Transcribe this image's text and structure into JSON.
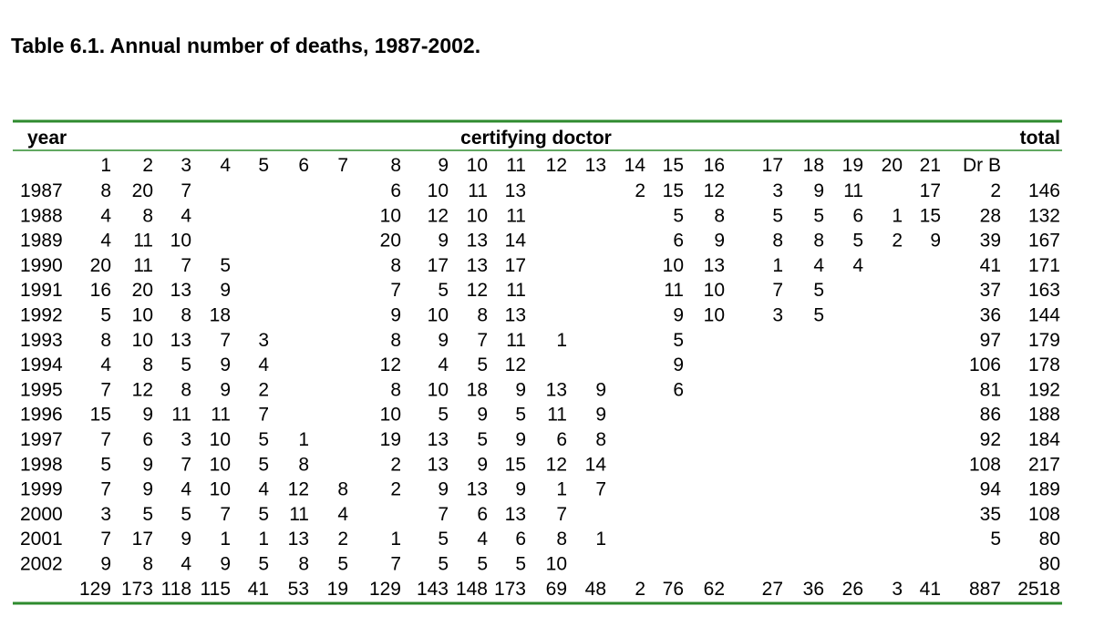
{
  "title": "Table 6.1. Annual number of deaths, 1987-2002.",
  "header": {
    "year": "year",
    "group": "certifying doctor",
    "total": "total"
  },
  "columns": [
    1,
    2,
    3,
    4,
    5,
    6,
    7,
    8,
    9,
    10,
    11,
    12,
    13,
    14,
    15,
    16,
    17,
    18,
    19,
    20,
    21,
    "Dr B"
  ],
  "rows": [
    {
      "year": 1987,
      "cells": [
        8,
        20,
        7,
        null,
        null,
        null,
        null,
        6,
        10,
        11,
        13,
        null,
        null,
        2,
        15,
        12,
        3,
        9,
        11,
        null,
        17,
        2
      ],
      "total": 146
    },
    {
      "year": 1988,
      "cells": [
        4,
        8,
        4,
        null,
        null,
        null,
        null,
        10,
        12,
        10,
        11,
        null,
        null,
        null,
        5,
        8,
        5,
        5,
        6,
        1,
        15,
        28
      ],
      "total": 132
    },
    {
      "year": 1989,
      "cells": [
        4,
        11,
        10,
        null,
        null,
        null,
        null,
        20,
        9,
        13,
        14,
        null,
        null,
        null,
        6,
        9,
        8,
        8,
        5,
        2,
        9,
        39
      ],
      "total": 167
    },
    {
      "year": 1990,
      "cells": [
        20,
        11,
        7,
        5,
        null,
        null,
        null,
        8,
        17,
        13,
        17,
        null,
        null,
        null,
        10,
        13,
        1,
        4,
        4,
        null,
        null,
        41
      ],
      "total": 171
    },
    {
      "year": 1991,
      "cells": [
        16,
        20,
        13,
        9,
        null,
        null,
        null,
        7,
        5,
        12,
        11,
        null,
        null,
        null,
        11,
        10,
        7,
        5,
        null,
        null,
        null,
        37
      ],
      "total": 163
    },
    {
      "year": 1992,
      "cells": [
        5,
        10,
        8,
        18,
        null,
        null,
        null,
        9,
        10,
        8,
        13,
        null,
        null,
        null,
        9,
        10,
        3,
        5,
        null,
        null,
        null,
        36
      ],
      "total": 144
    },
    {
      "year": 1993,
      "cells": [
        8,
        10,
        13,
        7,
        3,
        null,
        null,
        8,
        9,
        7,
        11,
        1,
        null,
        null,
        5,
        null,
        null,
        null,
        null,
        null,
        null,
        97
      ],
      "total": 179
    },
    {
      "year": 1994,
      "cells": [
        4,
        8,
        5,
        9,
        4,
        null,
        null,
        12,
        4,
        5,
        12,
        null,
        null,
        null,
        9,
        null,
        null,
        null,
        null,
        null,
        null,
        106
      ],
      "total": 178
    },
    {
      "year": 1995,
      "cells": [
        7,
        12,
        8,
        9,
        2,
        null,
        null,
        8,
        10,
        18,
        9,
        13,
        9,
        null,
        6,
        null,
        null,
        null,
        null,
        null,
        null,
        81
      ],
      "total": 192
    },
    {
      "year": 1996,
      "cells": [
        15,
        9,
        11,
        11,
        7,
        null,
        null,
        10,
        5,
        9,
        5,
        11,
        9,
        null,
        null,
        null,
        null,
        null,
        null,
        null,
        null,
        86
      ],
      "total": 188
    },
    {
      "year": 1997,
      "cells": [
        7,
        6,
        3,
        10,
        5,
        1,
        null,
        19,
        13,
        5,
        9,
        6,
        8,
        null,
        null,
        null,
        null,
        null,
        null,
        null,
        null,
        92
      ],
      "total": 184
    },
    {
      "year": 1998,
      "cells": [
        5,
        9,
        7,
        10,
        5,
        8,
        null,
        2,
        13,
        9,
        15,
        12,
        14,
        null,
        null,
        null,
        null,
        null,
        null,
        null,
        null,
        108
      ],
      "total": 217
    },
    {
      "year": 1999,
      "cells": [
        7,
        9,
        4,
        10,
        4,
        12,
        8,
        2,
        9,
        13,
        9,
        1,
        7,
        null,
        null,
        null,
        null,
        null,
        null,
        null,
        null,
        94
      ],
      "total": 189
    },
    {
      "year": 2000,
      "cells": [
        3,
        5,
        5,
        7,
        5,
        11,
        4,
        null,
        7,
        6,
        13,
        7,
        null,
        null,
        null,
        null,
        null,
        null,
        null,
        null,
        null,
        35
      ],
      "total": 108
    },
    {
      "year": 2001,
      "cells": [
        7,
        17,
        9,
        1,
        1,
        13,
        2,
        1,
        5,
        4,
        6,
        8,
        1,
        null,
        null,
        null,
        null,
        null,
        null,
        null,
        null,
        5
      ],
      "total": 80
    },
    {
      "year": 2002,
      "cells": [
        9,
        8,
        4,
        9,
        5,
        8,
        5,
        7,
        5,
        5,
        5,
        10,
        null,
        null,
        null,
        null,
        null,
        null,
        null,
        null,
        null,
        null
      ],
      "total": 80
    }
  ],
  "totals": {
    "cells": [
      129,
      173,
      118,
      115,
      41,
      53,
      19,
      129,
      143,
      148,
      173,
      69,
      48,
      2,
      76,
      62,
      27,
      36,
      26,
      3,
      41,
      887
    ],
    "total": 2518
  }
}
